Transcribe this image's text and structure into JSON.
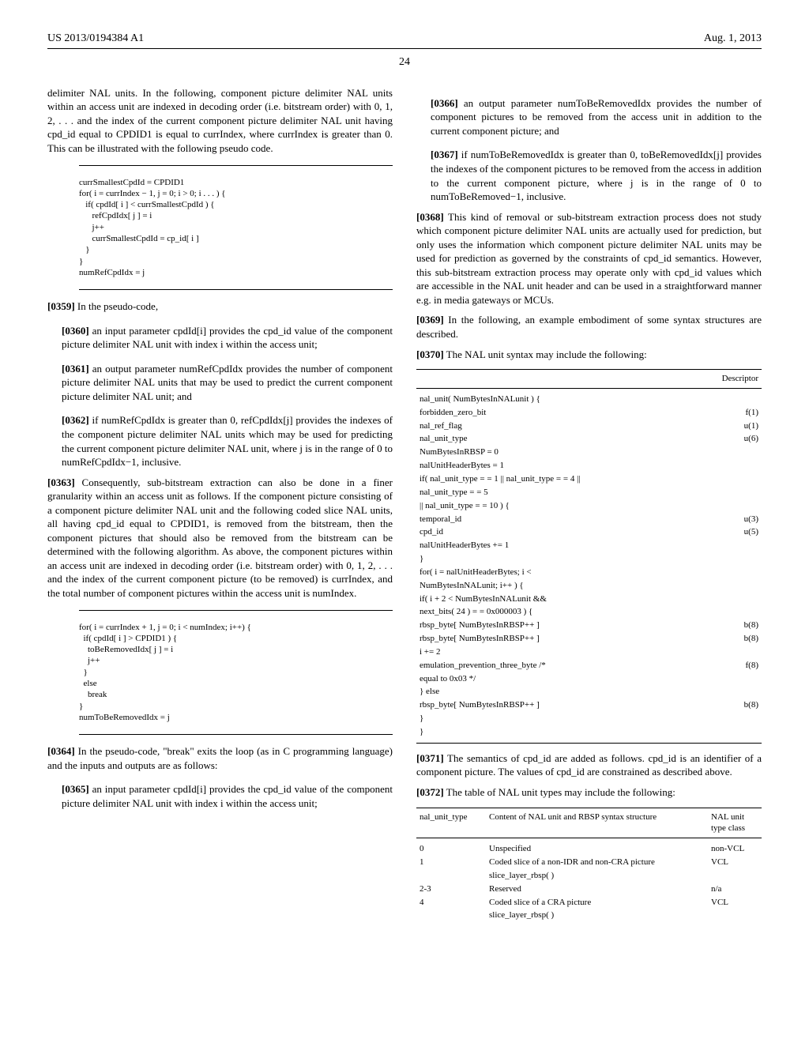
{
  "header": {
    "pub_number": "US 2013/0194384 A1",
    "date": "Aug. 1, 2013",
    "page_number": "24"
  },
  "left_col": {
    "p_intro": "delimiter NAL units. In the following, component picture delimiter NAL units within an access unit are indexed in decoding order (i.e. bitstream order) with 0, 1, 2, . . . and the index of the current component picture delimiter NAL unit having cpd_id equal to CPDID1 is equal to currIndex, where currIndex is greater than 0. This can be illustrated with the following pseudo code.",
    "code1": "currSmallestCpdId = CPDID1\nfor( i = currIndex − 1, j = 0; i > 0; i . . . ) {\n   if( cpdId[ i ] < currSmallestCpdId ) {\n      refCpdIdx[ j ] = i\n      j++\n      currSmallestCpdId = cp_id[ i ]\n   }\n}\nnumRefCpdIdx = j",
    "p0359_num": "[0359]",
    "p0359": "  In the pseudo-code,",
    "p0360_num": "[0360]",
    "p0360": "  an input parameter cpdId[i] provides the cpd_id value of the component picture delimiter NAL unit with index i within the access unit;",
    "p0361_num": "[0361]",
    "p0361": "  an output parameter numRefCpdIdx provides the number of component picture delimiter NAL units that may be used to predict the current component picture delimiter NAL unit; and",
    "p0362_num": "[0362]",
    "p0362": "  if numRefCpdIdx is greater than 0, refCpdIdx[j] provides the indexes of the component picture delimiter NAL units which may be used for predicting the current component picture delimiter NAL unit, where j is in the range of 0 to numRefCpdIdx−1, inclusive.",
    "p0363_num": "[0363]",
    "p0363": "  Consequently, sub-bitstream extraction can also be done in a finer granularity within an access unit as follows. If the component picture consisting of a component picture delimiter NAL unit and the following coded slice NAL units, all having cpd_id equal to CPDID1, is removed from the bitstream, then the component pictures that should also be removed from the bitstream can be determined with the following algorithm. As above, the component pictures within an access unit are indexed in decoding order (i.e. bitstream order) with 0, 1, 2, . . . and the index of the current component picture (to be removed) is currIndex, and the total number of component pictures within the access unit is numIndex.",
    "code2": "for( i = currIndex + 1, j = 0; i < numIndex; i++) {\n  if( cpdId[ i ] > CPDID1 ) {\n    toBeRemovedIdx[ j ] = i\n    j++\n  }\n  else\n    break\n}\nnumToBeRemovedIdx = j",
    "p0364_num": "[0364]",
    "p0364": "  In the pseudo-code, \"break\" exits the loop (as in C programming language) and the inputs and outputs are as follows:",
    "p0365_num": "[0365]",
    "p0365": "  an input parameter cpdId[i] provides the cpd_id value of the component picture delimiter NAL unit with index i within the access unit;"
  },
  "right_col": {
    "p0366_num": "[0366]",
    "p0366": "  an output parameter numToBeRemovedIdx provides the number of component pictures to be removed from the access unit in addition to the current component picture; and",
    "p0367_num": "[0367]",
    "p0367": "  if numToBeRemovedIdx is greater than 0, toBeRemovedIdx[j] provides the indexes of the component pictures to be removed from the access in addition to the current component picture, where j is in the range of 0 to numToBeRemoved−1, inclusive.",
    "p0368_num": "[0368]",
    "p0368": "  This kind of removal or sub-bitstream extraction process does not study which component picture delimiter NAL units are actually used for prediction, but only uses the information which component picture delimiter NAL units may be used for prediction as governed by the constraints of cpd_id semantics. However, this sub-bitstream extraction process may operate only with cpd_id values which are accessible in the NAL unit header and can be used in a straightforward manner e.g. in media gateways or MCUs.",
    "p0369_num": "[0369]",
    "p0369": "  In the following, an example embodiment of some syntax structures are described.",
    "p0370_num": "[0370]",
    "p0370": "  The NAL unit syntax may include the following:",
    "syntax_table": {
      "header_descriptor": "Descriptor",
      "rows": [
        {
          "text": "nal_unit( NumBytesInNALunit ) {",
          "desc": "",
          "indent": 1
        },
        {
          "text": "forbidden_zero_bit",
          "desc": "f(1)",
          "indent": 2
        },
        {
          "text": "nal_ref_flag",
          "desc": "u(1)",
          "indent": 2
        },
        {
          "text": "nal_unit_type",
          "desc": "u(6)",
          "indent": 2
        },
        {
          "text": "NumBytesInRBSP = 0",
          "desc": "",
          "indent": 2
        },
        {
          "text": "nalUnitHeaderBytes = 1",
          "desc": "",
          "indent": 2
        },
        {
          "text": "if( nal_unit_type = = 1 || nal_unit_type = = 4 ||",
          "desc": "",
          "indent": 2
        },
        {
          "text": "nal_unit_type = = 5",
          "desc": "",
          "indent": 0
        },
        {
          "text": "|| nal_unit_type = = 10 ) {",
          "desc": "",
          "indent": 1
        },
        {
          "text": "temporal_id",
          "desc": "u(3)",
          "indent": 2
        },
        {
          "text": "cpd_id",
          "desc": "u(5)",
          "indent": 2
        },
        {
          "text": "nalUnitHeaderBytes += 1",
          "desc": "",
          "indent": 2
        },
        {
          "text": "}",
          "desc": "",
          "indent": 2
        },
        {
          "text": "for( i = nalUnitHeaderBytes; i <",
          "desc": "",
          "indent": 2
        },
        {
          "text": "NumBytesInNALunit; i++ ) {",
          "desc": "",
          "indent": 0
        },
        {
          "text": "if( i + 2 < NumBytesInNALunit &&",
          "desc": "",
          "indent": 3
        },
        {
          "text": "next_bits( 24 ) = = 0x000003 ) {",
          "desc": "",
          "indent": 0
        },
        {
          "text": "rbsp_byte[ NumBytesInRBSP++ ]",
          "desc": "b(8)",
          "indent": 4
        },
        {
          "text": "rbsp_byte[ NumBytesInRBSP++ ]",
          "desc": "b(8)",
          "indent": 4
        },
        {
          "text": "i += 2",
          "desc": "",
          "indent": 4
        },
        {
          "text": "emulation_prevention_three_byte /*",
          "desc": "f(8)",
          "indent": 4
        },
        {
          "text": "equal to 0x03 */",
          "desc": "",
          "indent": 0
        },
        {
          "text": "} else",
          "desc": "",
          "indent": 3
        },
        {
          "text": "rbsp_byte[ NumBytesInRBSP++ ]",
          "desc": "b(8)",
          "indent": 4
        },
        {
          "text": "}",
          "desc": "",
          "indent": 2
        },
        {
          "text": "}",
          "desc": "",
          "indent": 1
        }
      ]
    },
    "p0371_num": "[0371]",
    "p0371": "  The semantics of cpd_id are added as follows. cpd_id is an identifier of a component picture. The values of cpd_id are constrained as described above.",
    "p0372_num": "[0372]",
    "p0372": "  The table of NAL unit types may include the following:",
    "nal_table": {
      "h1": "nal_unit_type",
      "h2": "Content of NAL unit and RBSP syntax structure",
      "h3": "NAL unit type class",
      "rows": [
        {
          "c1": "0",
          "c2": "Unspecified",
          "c3": "non-VCL"
        },
        {
          "c1": "1",
          "c2": "Coded slice of a non-IDR and non-CRA picture",
          "c3": "VCL"
        },
        {
          "c1": "",
          "c2": "slice_layer_rbsp( )",
          "c3": ""
        },
        {
          "c1": "2-3",
          "c2": "Reserved",
          "c3": "n/a"
        },
        {
          "c1": "4",
          "c2": "Coded slice of a CRA picture",
          "c3": "VCL"
        },
        {
          "c1": "",
          "c2": "slice_layer_rbsp( )",
          "c3": ""
        }
      ]
    }
  }
}
